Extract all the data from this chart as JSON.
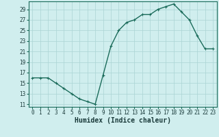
{
  "x": [
    0,
    1,
    2,
    3,
    4,
    5,
    6,
    7,
    8,
    9,
    10,
    11,
    12,
    13,
    14,
    15,
    16,
    17,
    18,
    19,
    20,
    21,
    22,
    23
  ],
  "y": [
    16,
    16,
    16,
    15,
    14,
    13,
    12,
    11.5,
    11,
    16.5,
    22,
    25,
    26.5,
    27,
    28,
    28,
    29,
    29.5,
    30,
    28.5,
    27,
    24,
    21.5,
    21.5
  ],
  "line_color": "#1a6b5a",
  "marker": "+",
  "marker_size": 3,
  "bg_color": "#d0eeee",
  "grid_color": "#aad4d4",
  "xlabel": "Humidex (Indice chaleur)",
  "xlim": [
    -0.5,
    23.5
  ],
  "ylim": [
    10.5,
    30.5
  ],
  "yticks": [
    11,
    13,
    15,
    17,
    19,
    21,
    23,
    25,
    27,
    29
  ],
  "xtick_labels": [
    "0",
    "1",
    "2",
    "3",
    "4",
    "5",
    "6",
    "7",
    "8",
    "9",
    "10",
    "11",
    "12",
    "13",
    "14",
    "15",
    "16",
    "17",
    "18",
    "19",
    "20",
    "21",
    "22",
    "23"
  ],
  "spine_color": "#1a6b5a",
  "font_color": "#1a3a3a",
  "tick_fontsize": 5.5,
  "xlabel_fontsize": 7,
  "linewidth": 1.0,
  "markeredgewidth": 0.8
}
